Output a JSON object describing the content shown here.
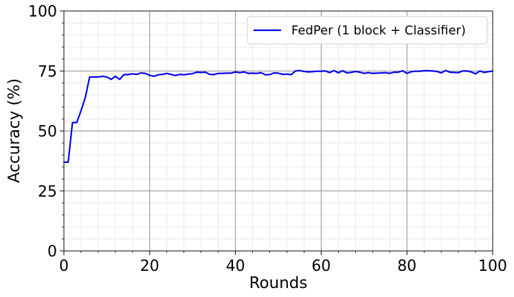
{
  "chart_data": {
    "type": "line",
    "xlabel": "Rounds",
    "ylabel": "Accuracy (%)",
    "xlim": [
      0,
      100
    ],
    "ylim": [
      0,
      100
    ],
    "x_ticks": [
      0,
      20,
      40,
      60,
      80,
      100
    ],
    "y_ticks": [
      0,
      25,
      50,
      75,
      100
    ],
    "x_tick_labels": [
      "0",
      "20",
      "40",
      "60",
      "80",
      "100"
    ],
    "y_tick_labels": [
      "0",
      "25",
      "50",
      "75",
      "100"
    ],
    "grid": "major and minor",
    "legend_position": "top-right",
    "series": [
      {
        "name": "FedPer (1 block + Classifier)",
        "color": "#0000ee",
        "x": [
          0,
          1,
          2,
          3,
          4,
          5,
          6,
          7,
          8,
          9,
          10,
          11,
          12,
          13,
          14,
          15,
          16,
          17,
          18,
          19,
          20,
          21,
          22,
          23,
          24,
          25,
          26,
          27,
          28,
          29,
          30,
          31,
          32,
          33,
          34,
          35,
          36,
          37,
          38,
          39,
          40,
          41,
          42,
          43,
          44,
          45,
          46,
          47,
          48,
          49,
          50,
          51,
          52,
          53,
          54,
          55,
          56,
          57,
          58,
          59,
          60,
          61,
          62,
          63,
          64,
          65,
          66,
          67,
          68,
          69,
          70,
          71,
          72,
          73,
          74,
          75,
          76,
          77,
          78,
          79,
          80,
          81,
          82,
          83,
          84,
          85,
          86,
          87,
          88,
          89,
          90,
          91,
          92,
          93,
          94,
          95,
          96,
          97,
          98,
          99,
          100
        ],
        "y": [
          37.0,
          37.0,
          53.5,
          53.5,
          58.5,
          64.0,
          72.5,
          72.5,
          72.5,
          72.8,
          72.5,
          71.5,
          72.8,
          71.5,
          73.5,
          73.5,
          73.8,
          73.6,
          74.2,
          74.0,
          73.2,
          72.8,
          73.4,
          73.6,
          74.0,
          73.6,
          73.1,
          73.6,
          73.4,
          73.7,
          73.9,
          74.5,
          74.4,
          74.5,
          73.6,
          73.5,
          74.0,
          74.0,
          74.1,
          74.1,
          74.6,
          74.3,
          74.6,
          74.0,
          74.1,
          74.0,
          74.3,
          73.4,
          73.5,
          74.2,
          74.1,
          73.6,
          73.7,
          73.5,
          75.0,
          75.2,
          74.8,
          74.6,
          74.7,
          74.9,
          74.9,
          75.0,
          74.3,
          75.2,
          74.2,
          75.1,
          74.2,
          74.4,
          74.8,
          74.5,
          74.0,
          74.3,
          74.0,
          74.1,
          74.2,
          74.3,
          74.0,
          74.5,
          74.5,
          75.1,
          74.0,
          74.7,
          74.9,
          74.9,
          75.1,
          75.1,
          75.0,
          74.8,
          74.2,
          75.2,
          74.5,
          74.4,
          74.3,
          75.0,
          75.0,
          74.6,
          73.8,
          75.0,
          74.4,
          74.7,
          75.0
        ]
      }
    ]
  }
}
